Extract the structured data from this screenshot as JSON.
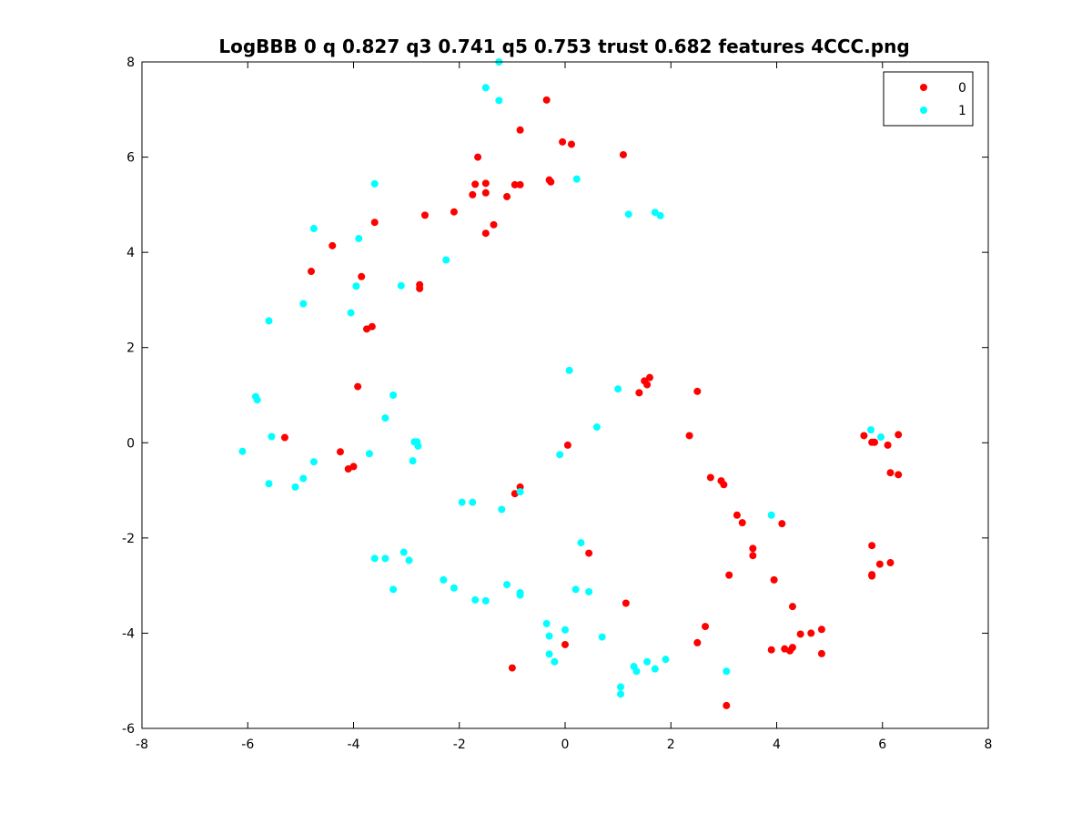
{
  "chart_data": {
    "type": "scatter",
    "title": "LogBBB 0 q 0.827 q3 0.741 q5 0.753 trust 0.682 features 4CCC.png",
    "xlabel": "",
    "ylabel": "",
    "xlim": [
      -8,
      8
    ],
    "ylim": [
      -6,
      8
    ],
    "xticks": [
      -8,
      -6,
      -4,
      -2,
      0,
      2,
      4,
      6,
      8
    ],
    "yticks": [
      -6,
      -4,
      -2,
      0,
      2,
      4,
      6,
      8
    ],
    "grid": false,
    "legend_position": "top-right",
    "series": [
      {
        "name": "0",
        "color": "#ff0000",
        "points": [
          [
            -0.35,
            7.2
          ],
          [
            -0.05,
            6.32
          ],
          [
            0.12,
            6.27
          ],
          [
            -0.85,
            6.57
          ],
          [
            1.1,
            6.05
          ],
          [
            -1.65,
            6.0
          ],
          [
            -1.7,
            5.43
          ],
          [
            -1.5,
            5.45
          ],
          [
            -1.75,
            5.21
          ],
          [
            -1.5,
            5.25
          ],
          [
            -0.95,
            5.42
          ],
          [
            -0.85,
            5.42
          ],
          [
            -1.1,
            5.17
          ],
          [
            -0.3,
            5.52
          ],
          [
            -0.27,
            5.48
          ],
          [
            -2.1,
            4.85
          ],
          [
            -2.65,
            4.78
          ],
          [
            -1.35,
            4.58
          ],
          [
            -1.5,
            4.4
          ],
          [
            -3.6,
            4.63
          ],
          [
            -4.4,
            4.14
          ],
          [
            -4.8,
            3.6
          ],
          [
            -3.85,
            3.49
          ],
          [
            -2.75,
            3.32
          ],
          [
            -2.75,
            3.24
          ],
          [
            -3.65,
            2.44
          ],
          [
            -3.75,
            2.39
          ],
          [
            1.6,
            1.37
          ],
          [
            1.5,
            1.3
          ],
          [
            1.55,
            1.22
          ],
          [
            1.4,
            1.05
          ],
          [
            2.5,
            1.08
          ],
          [
            -3.92,
            1.18
          ],
          [
            2.35,
            0.15
          ],
          [
            0.05,
            -0.05
          ],
          [
            -5.3,
            0.11
          ],
          [
            -4.25,
            -0.19
          ],
          [
            -4.1,
            -0.55
          ],
          [
            -4.0,
            -0.5
          ],
          [
            -0.85,
            -0.93
          ],
          [
            -0.95,
            -1.07
          ],
          [
            2.75,
            -0.73
          ],
          [
            2.95,
            -0.8
          ],
          [
            3.0,
            -0.88
          ],
          [
            3.25,
            -1.52
          ],
          [
            3.35,
            -1.68
          ],
          [
            4.1,
            -1.7
          ],
          [
            3.55,
            -2.22
          ],
          [
            3.55,
            -2.37
          ],
          [
            0.45,
            -2.32
          ],
          [
            3.1,
            -2.78
          ],
          [
            3.95,
            -2.88
          ],
          [
            1.15,
            -3.37
          ],
          [
            4.3,
            -3.44
          ],
          [
            2.65,
            -3.86
          ],
          [
            4.85,
            -3.92
          ],
          [
            4.65,
            -4.0
          ],
          [
            4.45,
            -4.02
          ],
          [
            2.5,
            -4.2
          ],
          [
            0,
            -4.24
          ],
          [
            3.9,
            -4.35
          ],
          [
            4.15,
            -4.33
          ],
          [
            4.25,
            -4.37
          ],
          [
            4.3,
            -4.3
          ],
          [
            4.85,
            -4.43
          ],
          [
            -1.0,
            -4.73
          ],
          [
            3.05,
            -5.52
          ],
          [
            5.65,
            0.15
          ],
          [
            5.8,
            0.01
          ],
          [
            5.85,
            0.01
          ],
          [
            6.1,
            -0.05
          ],
          [
            6.3,
            0.17
          ],
          [
            6.15,
            -0.63
          ],
          [
            6.3,
            -0.67
          ],
          [
            5.8,
            -2.16
          ],
          [
            5.95,
            -2.55
          ],
          [
            6.15,
            -2.52
          ],
          [
            5.8,
            -2.77
          ],
          [
            5.8,
            -2.8
          ]
        ]
      },
      {
        "name": "1",
        "color": "#00ffff",
        "points": [
          [
            -1.25,
            8.0
          ],
          [
            -1.5,
            7.46
          ],
          [
            -1.25,
            7.19
          ],
          [
            0.22,
            5.54
          ],
          [
            1.2,
            4.8
          ],
          [
            1.7,
            4.84
          ],
          [
            1.8,
            4.77
          ],
          [
            -3.6,
            5.44
          ],
          [
            -4.75,
            4.5
          ],
          [
            -3.9,
            4.29
          ],
          [
            -2.25,
            3.84
          ],
          [
            -3.95,
            3.29
          ],
          [
            -3.1,
            3.3
          ],
          [
            -4.95,
            2.92
          ],
          [
            -4.05,
            2.73
          ],
          [
            -5.6,
            2.56
          ],
          [
            0.08,
            1.52
          ],
          [
            1.0,
            1.13
          ],
          [
            -3.25,
            1.0
          ],
          [
            -5.85,
            0.97
          ],
          [
            -5.82,
            0.9
          ],
          [
            -3.4,
            0.52
          ],
          [
            0.6,
            0.33
          ],
          [
            -5.55,
            0.13
          ],
          [
            -2.85,
            0.02
          ],
          [
            -2.8,
            0.02
          ],
          [
            -2.78,
            -0.07
          ],
          [
            -6.1,
            -0.18
          ],
          [
            -3.7,
            -0.23
          ],
          [
            -0.1,
            -0.25
          ],
          [
            -2.88,
            -0.38
          ],
          [
            -4.75,
            -0.4
          ],
          [
            -4.95,
            -0.75
          ],
          [
            -5.6,
            -0.86
          ],
          [
            -5.1,
            -0.93
          ],
          [
            -0.85,
            -1.03
          ],
          [
            -1.95,
            -1.25
          ],
          [
            -1.75,
            -1.25
          ],
          [
            -1.2,
            -1.4
          ],
          [
            3.9,
            -1.52
          ],
          [
            0.3,
            -2.1
          ],
          [
            -3.05,
            -2.3
          ],
          [
            -3.6,
            -2.43
          ],
          [
            -3.4,
            -2.43
          ],
          [
            -2.95,
            -2.47
          ],
          [
            -2.3,
            -2.88
          ],
          [
            -1.1,
            -2.98
          ],
          [
            -2.1,
            -3.05
          ],
          [
            -3.25,
            -3.08
          ],
          [
            0.2,
            -3.08
          ],
          [
            -0.85,
            -3.15
          ],
          [
            0.45,
            -3.13
          ],
          [
            -0.85,
            -3.2
          ],
          [
            -1.7,
            -3.3
          ],
          [
            -1.5,
            -3.32
          ],
          [
            -0.35,
            -3.8
          ],
          [
            0,
            -3.93
          ],
          [
            0.7,
            -4.08
          ],
          [
            -0.3,
            -4.06
          ],
          [
            1.9,
            -4.55
          ],
          [
            -0.3,
            -4.44
          ],
          [
            1.55,
            -4.6
          ],
          [
            -0.2,
            -4.6
          ],
          [
            1.3,
            -4.7
          ],
          [
            1.7,
            -4.75
          ],
          [
            1.35,
            -4.8
          ],
          [
            3.05,
            -4.8
          ],
          [
            1.05,
            -5.13
          ],
          [
            1.05,
            -5.28
          ],
          [
            5.78,
            0.27
          ],
          [
            5.97,
            0.12
          ]
        ]
      }
    ]
  }
}
